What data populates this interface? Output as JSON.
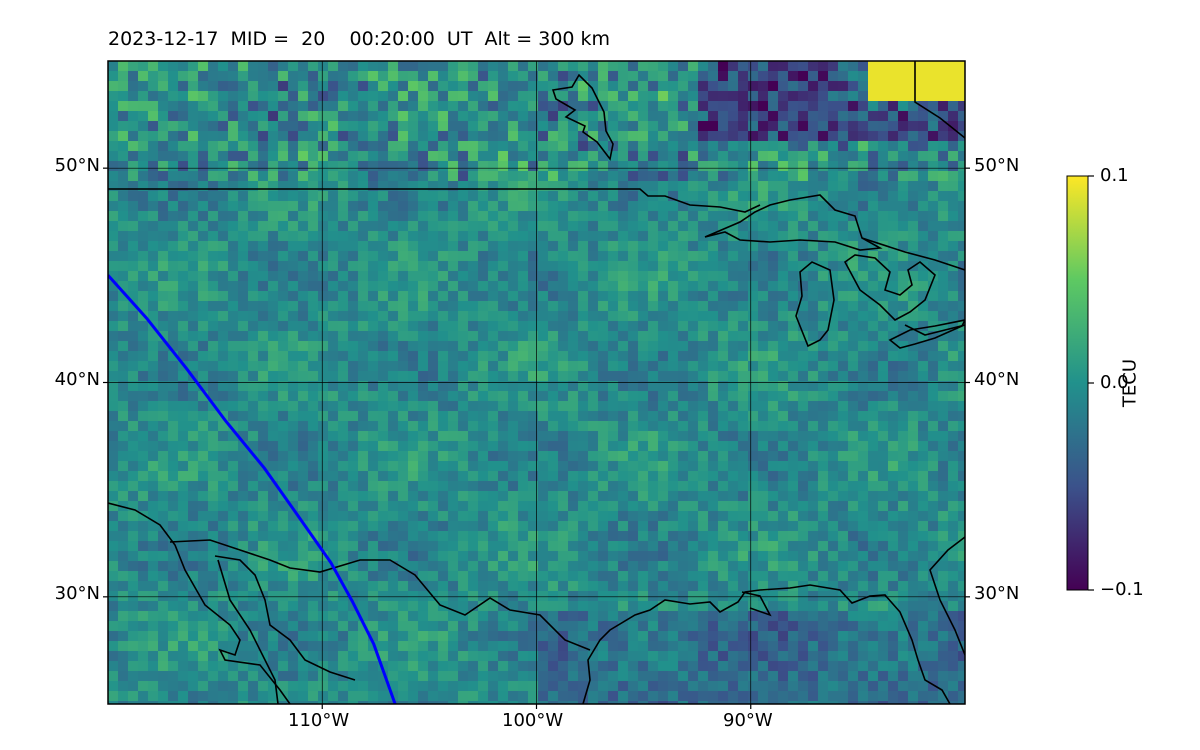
{
  "title": "2023-12-17  MID =  20    00:20:00  UT  Alt = 300 km",
  "map": {
    "lon_range": [
      -120,
      -80
    ],
    "lat_range": [
      25,
      55
    ],
    "lat_ticks": [
      {
        "value": 50,
        "label": "50°N"
      },
      {
        "value": 40,
        "label": "40°N"
      },
      {
        "value": 30,
        "label": "30°N"
      }
    ],
    "lon_ticks": [
      {
        "value": -110,
        "label": "110°W"
      },
      {
        "value": -100,
        "label": "100°W"
      },
      {
        "value": -90,
        "label": "90°W"
      }
    ],
    "grid": true,
    "coastline_color": "#000000",
    "track_color": "#0000ff",
    "track": [
      [
        -120,
        45
      ],
      [
        -118.2,
        43
      ],
      [
        -116.3,
        40.6
      ],
      [
        -114.5,
        38.2
      ],
      [
        -112.7,
        36
      ],
      [
        -111,
        33.6
      ],
      [
        -109.6,
        31.6
      ],
      [
        -108.6,
        29.8
      ],
      [
        -107.6,
        27.8
      ],
      [
        -106.6,
        25
      ]
    ]
  },
  "colorbar": {
    "label": "TECU",
    "min_label": "−0.1",
    "mid_label": "0.0",
    "max_label": "0.1",
    "min": -0.1,
    "max": 0.1,
    "colormap": "viridis",
    "colors": [
      "#440154",
      "#3b528b",
      "#21918c",
      "#5ec962",
      "#fde725"
    ]
  },
  "chart_data": {
    "type": "heatmap",
    "title": "2023-12-17  MID =  20    00:20:00  UT  Alt = 300 km",
    "variable": "TECU",
    "range": [
      -0.1,
      0.1
    ],
    "lon_ticks": [
      "110°W",
      "100°W",
      "90°W"
    ],
    "lat_ticks": [
      "50°N",
      "40°N",
      "30°N"
    ]
  }
}
